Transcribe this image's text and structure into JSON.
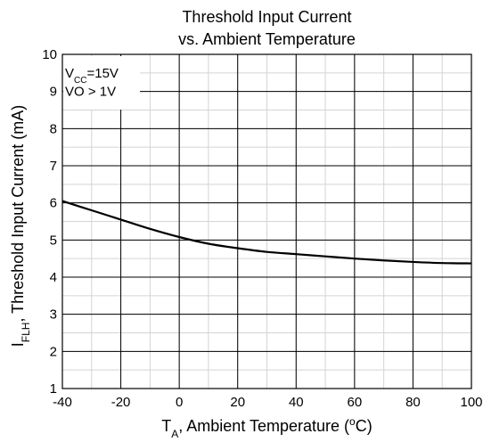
{
  "chart_data": {
    "type": "line",
    "title": "Threshold Input Current",
    "subtitle": "vs. Ambient Temperature",
    "xlabel": {
      "main": "T",
      "sub": "A",
      "rest": ", Ambient Temperature (",
      "deg": "o",
      "unit": "C)"
    },
    "ylabel": {
      "main": "I",
      "sub": "FLH",
      "rest": ", Threshold Input Current (mA)"
    },
    "xlim": [
      -40,
      100
    ],
    "ylim": [
      1,
      10
    ],
    "xticks": [
      "-40",
      "-20",
      "0",
      "20",
      "40",
      "60",
      "80",
      "100"
    ],
    "yticks": [
      "1",
      "2",
      "3",
      "4",
      "5",
      "6",
      "7",
      "8",
      "9",
      "10"
    ],
    "grid": true,
    "annotations": [
      {
        "main": "V",
        "sub": "CC",
        "rest": "=15V"
      },
      {
        "main": "VO > 1V"
      }
    ],
    "series": [
      {
        "x": [
          -40,
          -30,
          -20,
          -10,
          0,
          10,
          20,
          30,
          40,
          50,
          60,
          70,
          80,
          90,
          100
        ],
        "y": [
          6.05,
          5.8,
          5.55,
          5.3,
          5.08,
          4.9,
          4.78,
          4.68,
          4.62,
          4.56,
          4.5,
          4.45,
          4.41,
          4.38,
          4.37
        ]
      }
    ]
  }
}
